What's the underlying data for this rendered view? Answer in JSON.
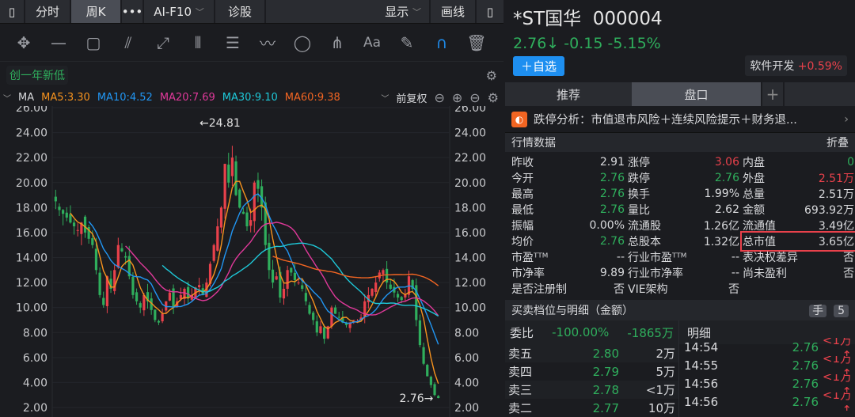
{
  "toolbar": {
    "tabs": [
      "分时",
      "周K",
      "•••",
      "AI-F10",
      "诊股",
      "显示",
      "画线"
    ]
  },
  "flag": "创一年新低",
  "ma": {
    "label": "MA",
    "ma5": "MA5:3.30",
    "ma10": "MA10:4.52",
    "ma20": "MA20:7.69",
    "ma30": "MA30:9.10",
    "ma60": "MA60:9.38",
    "adjust": "前复权"
  },
  "colors": {
    "ma5": "#f7931e",
    "ma10": "#2196f3",
    "ma20": "#e0399a",
    "ma30": "#1ec8d8",
    "ma60": "#f26522",
    "up": "#e8414b",
    "down": "#2fae5c"
  },
  "chart_data": {
    "type": "candlestick",
    "ylim": [
      2,
      26
    ],
    "yticks": [
      "26.00",
      "24.00",
      "22.00",
      "20.00",
      "18.00",
      "16.00",
      "14.00",
      "12.00",
      "10.00",
      "8.00",
      "6.00",
      "4.00",
      "2.00"
    ],
    "max_label": "←24.81",
    "min_label": "2.76→",
    "closes": [
      18.5,
      17.8,
      17.5,
      17.2,
      16.8,
      16.5,
      16.2,
      16.8,
      16.0,
      15.5,
      15.0,
      13.0,
      11.0,
      10.2,
      12.5,
      11.5,
      13.0,
      15.0,
      14.5,
      14.0,
      12.5,
      11.0,
      10.5,
      10.0,
      11.0,
      10.5,
      9.8,
      9.0,
      8.8,
      9.5,
      10.5,
      11.2,
      10.0,
      10.5,
      11.0,
      11.5,
      10.8,
      11.0,
      11.6,
      11.8,
      11.0,
      12.0,
      13.5,
      15.0,
      16.5,
      18.0,
      21.5,
      20.0,
      22.0,
      19.0,
      18.0,
      17.5,
      16.5,
      17.0,
      20.0,
      19.5,
      18.0,
      15.0,
      13.0,
      12.0,
      12.5,
      10.8,
      11.5,
      13.0,
      12.8,
      12.2,
      12.0,
      11.5,
      10.5,
      9.5,
      9.0,
      8.0,
      8.5,
      7.5,
      8.5,
      10.0,
      9.5,
      9.2,
      8.8,
      8.6,
      8.8,
      9.0,
      8.9,
      9.2,
      10.5,
      11.0,
      11.5,
      12.0,
      12.8,
      13.0,
      12.0,
      11.5,
      11.2,
      10.8,
      10.6,
      11.0,
      12.5,
      11.5,
      9.0,
      7.0,
      5.5,
      4.5,
      3.8,
      3.0,
      2.76
    ]
  },
  "stock": {
    "name": "*ST国华",
    "code": "000004",
    "price": "2.76↓",
    "change": "-0.15",
    "pct": "-5.15%",
    "add": "＋自选",
    "sector": "软件开发",
    "sector_pct": "+0.59%"
  },
  "tabs": {
    "t1": "推荐",
    "t2": "盘口",
    "add": "+"
  },
  "alert": "跌停分析：市值退市风险＋连续风险提示＋财务退...",
  "quote": {
    "title": "行情数据",
    "fold": "折叠",
    "rows": [
      [
        [
          "昨收",
          "2.91",
          ""
        ],
        [
          "涨停",
          "3.06",
          "red"
        ],
        [
          "内盘",
          "0",
          "green"
        ]
      ],
      [
        [
          "今开",
          "2.76",
          "green"
        ],
        [
          "跌停",
          "2.76",
          "green"
        ],
        [
          "外盘",
          "2.51万",
          "red"
        ]
      ],
      [
        [
          "最高",
          "2.76",
          "green"
        ],
        [
          "换手",
          "1.99%",
          ""
        ],
        [
          "总量",
          "2.51万",
          ""
        ]
      ],
      [
        [
          "最低",
          "2.76",
          "green"
        ],
        [
          "量比",
          "2.62",
          ""
        ],
        [
          "金额",
          "693.92万",
          ""
        ]
      ],
      [
        [
          "振幅",
          "0.00%",
          ""
        ],
        [
          "流通股",
          "1.26亿",
          ""
        ],
        [
          "流通值",
          "3.49亿",
          ""
        ]
      ],
      [
        [
          "均价",
          "2.76",
          "green"
        ],
        [
          "总股本",
          "1.32亿",
          ""
        ],
        [
          "总市值",
          "3.65亿",
          ""
        ]
      ],
      [
        [
          "市盈ᵀᵀᴹ",
          "--",
          ""
        ],
        [
          "行业市盈ᵀᵀᴹ",
          "--",
          ""
        ],
        [
          "表决权差异",
          "否",
          ""
        ]
      ],
      [
        [
          "市净率",
          "9.89",
          ""
        ],
        [
          "行业市净率",
          "--",
          ""
        ],
        [
          "尚未盈利",
          "否",
          ""
        ]
      ],
      [
        [
          "是否注册制",
          "否",
          ""
        ],
        [
          "VIE架构",
          "否",
          ""
        ],
        [
          "",
          "",
          " "
        ]
      ]
    ]
  },
  "book": {
    "title": "买卖档位与明细（金额）",
    "hand": "手",
    "five": "5",
    "wb_label": "委比",
    "wb_pct": "-100.00%",
    "wb_amt": "-1865万",
    "detail": "明细",
    "asks": [
      [
        "卖五",
        "2.80",
        "2万"
      ],
      [
        "卖四",
        "2.79",
        "5万"
      ],
      [
        "卖三",
        "2.78",
        "<1万"
      ],
      [
        "卖二",
        "2.77",
        "10万"
      ]
    ],
    "ticks": [
      [
        "14:54",
        "2.76",
        "<1万↑"
      ],
      [
        "14:55",
        "2.76",
        "<1万↑"
      ],
      [
        "14:56",
        "2.76",
        "<1万↑"
      ],
      [
        "14:56",
        "2.76",
        "<1万↑"
      ]
    ]
  }
}
